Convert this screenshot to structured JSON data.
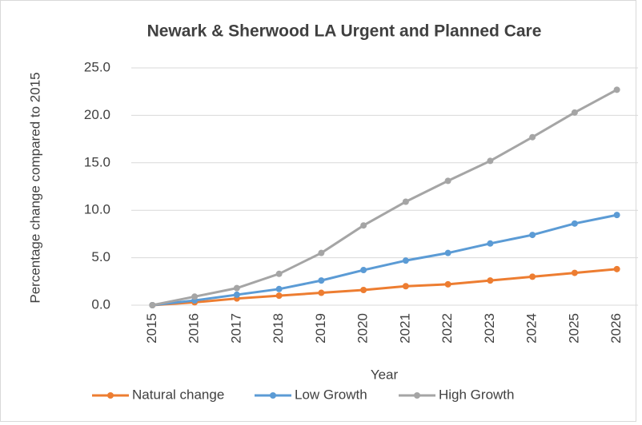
{
  "chart_data": {
    "type": "line",
    "title": "Newark & Sherwood LA Urgent and Planned Care",
    "x_label": "Year",
    "y_label": "Percentage change compared to 2015",
    "categories": [
      "2015",
      "2016",
      "2017",
      "2018",
      "2019",
      "2020",
      "2021",
      "2022",
      "2023",
      "2024",
      "2025",
      "2026"
    ],
    "series": [
      {
        "name": "Natural change",
        "color": "#ed7d31",
        "values": [
          0,
          0.3,
          0.7,
          1.0,
          1.3,
          1.6,
          2.0,
          2.2,
          2.6,
          3.0,
          3.4,
          3.8
        ]
      },
      {
        "name": "Low Growth",
        "color": "#5b9bd5",
        "values": [
          0,
          0.5,
          1.1,
          1.7,
          2.6,
          3.7,
          4.7,
          5.5,
          6.5,
          7.4,
          8.6,
          9.5
        ]
      },
      {
        "name": "High Growth",
        "color": "#a5a5a5",
        "values": [
          0,
          0.9,
          1.8,
          3.3,
          5.5,
          8.4,
          10.9,
          13.1,
          15.2,
          17.7,
          20.3,
          22.7
        ]
      }
    ],
    "ylim": [
      0,
      25
    ],
    "yticks": [
      {
        "value": 0,
        "label": "0.0"
      },
      {
        "value": 5,
        "label": "5.0"
      },
      {
        "value": 10,
        "label": "10.0"
      },
      {
        "value": 15,
        "label": "15.0"
      },
      {
        "value": 20,
        "label": "20.0"
      },
      {
        "value": 25,
        "label": "25.0"
      }
    ],
    "grid": true,
    "legend": "bottom"
  }
}
